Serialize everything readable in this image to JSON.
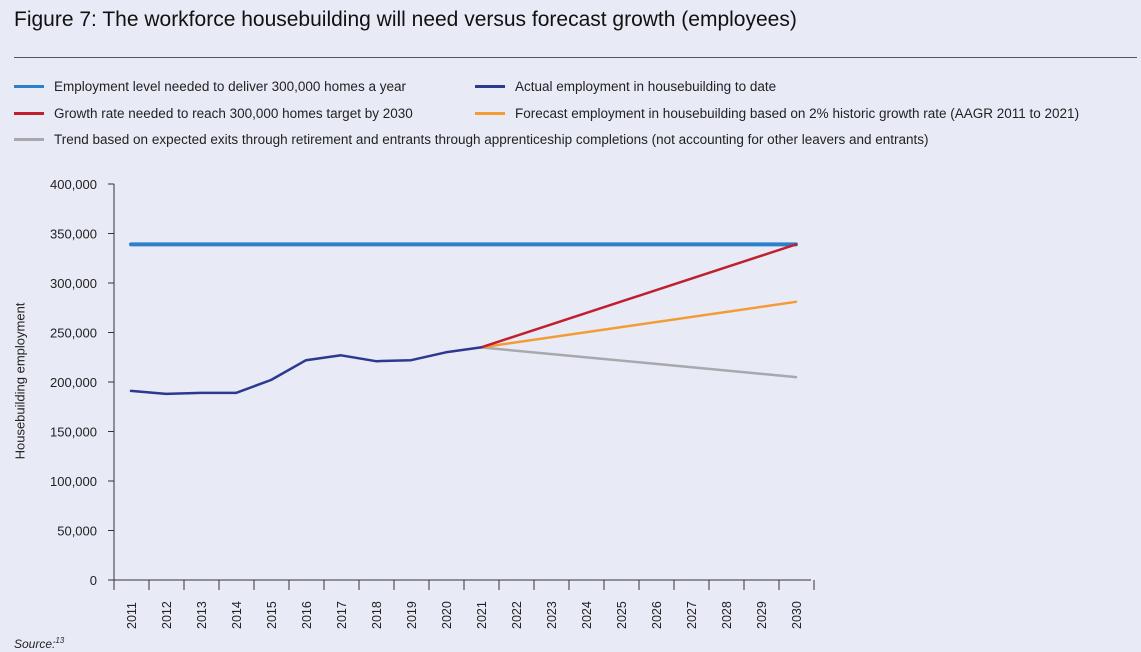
{
  "title": "Figure 7: The workforce housebuilding will need versus forecast growth (employees)",
  "source": {
    "label": "Source:",
    "ref": "13"
  },
  "colors": {
    "background": "#e8eaf6",
    "needed": "#2b7fcb",
    "actual": "#2b3990",
    "growth": "#c0202e",
    "forecast": "#f39c34",
    "trend": "#a8a8ad"
  },
  "legend": [
    {
      "key": "needed",
      "label": "Employment level needed to deliver 300,000 homes a year"
    },
    {
      "key": "actual",
      "label": "Actual employment in housebuilding to date"
    },
    {
      "key": "growth",
      "label": "Growth rate needed to reach 300,000 homes target by 2030"
    },
    {
      "key": "forecast",
      "label": "Forecast employment in housebuilding based on 2% historic growth rate (AAGR 2011 to 2021)"
    },
    {
      "key": "trend",
      "label": "Trend based on expected exits through retirement and entrants through apprenticeship completions (not accounting for other leavers and entrants)"
    }
  ],
  "chart_data": {
    "type": "line",
    "title": "Figure 7: The workforce housebuilding will need versus forecast growth (employees)",
    "xlabel": "",
    "ylabel": "Housebuilding employment",
    "ylim": [
      0,
      400000
    ],
    "yticks": [
      0,
      50000,
      100000,
      150000,
      200000,
      250000,
      300000,
      350000,
      400000
    ],
    "ytick_labels": [
      "0",
      "50,000",
      "100,000",
      "150,000",
      "200,000",
      "250,000",
      "300,000",
      "350,000",
      "400,000"
    ],
    "categories": [
      "2011",
      "2012",
      "2013",
      "2014",
      "2015",
      "2016",
      "2017",
      "2018",
      "2019",
      "2020",
      "2021",
      "2022",
      "2023",
      "2024",
      "2025",
      "2026",
      "2027",
      "2028",
      "2029",
      "2030"
    ],
    "series": [
      {
        "key": "needed",
        "name": "Employment level needed to deliver 300,000 homes a year",
        "x": [
          "2011",
          "2030"
        ],
        "values": [
          339000,
          339000
        ]
      },
      {
        "key": "actual",
        "name": "Actual employment in housebuilding to date",
        "x": [
          "2011",
          "2012",
          "2013",
          "2014",
          "2015",
          "2016",
          "2017",
          "2018",
          "2019",
          "2020",
          "2021"
        ],
        "values": [
          191000,
          188000,
          189000,
          189000,
          202000,
          222000,
          227000,
          221000,
          222000,
          230000,
          235000
        ]
      },
      {
        "key": "growth",
        "name": "Growth rate needed to reach 300,000 homes target by 2030",
        "x": [
          "2021",
          "2030"
        ],
        "values": [
          235000,
          339000
        ]
      },
      {
        "key": "forecast",
        "name": "Forecast employment in housebuilding based on 2% historic growth rate (AAGR 2011 to 2021)",
        "x": [
          "2021",
          "2030"
        ],
        "values": [
          235000,
          281000
        ]
      },
      {
        "key": "trend",
        "name": "Trend based on expected exits through retirement and entrants through apprenticeship completions (not accounting for other leavers and entrants)",
        "x": [
          "2021",
          "2030"
        ],
        "values": [
          235000,
          205000
        ]
      }
    ]
  }
}
